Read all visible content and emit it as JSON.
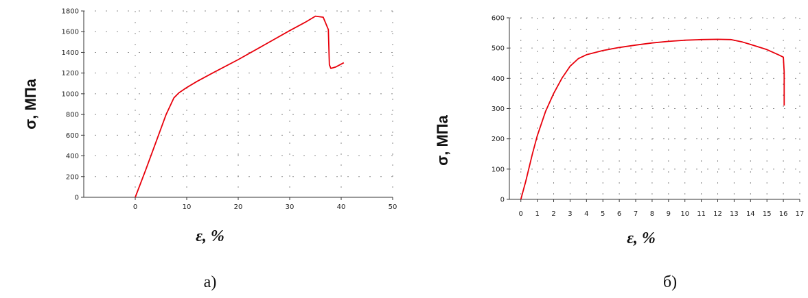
{
  "chart_data": [
    {
      "type": "line",
      "ylabel": "σ, МПа",
      "xlabel": "ε, %",
      "caption": "а)",
      "xlim": [
        -10,
        50
      ],
      "ylim": [
        0,
        1800
      ],
      "xticks": [
        0,
        10,
        20,
        30,
        40,
        50
      ],
      "yticks": [
        0,
        200,
        400,
        600,
        800,
        1000,
        1200,
        1400,
        1600,
        1800
      ],
      "grid": "dashed",
      "color": "#e8000b",
      "series": [
        {
          "x": [
            0,
            2,
            4,
            6,
            7.5,
            8.5,
            10,
            12,
            15,
            20,
            25,
            30,
            33,
            35,
            36.5,
            37.5,
            37.7,
            38,
            39,
            40.5
          ],
          "y": [
            0,
            260,
            530,
            800,
            960,
            1010,
            1060,
            1120,
            1200,
            1330,
            1470,
            1610,
            1690,
            1750,
            1740,
            1620,
            1280,
            1245,
            1260,
            1300
          ]
        }
      ]
    },
    {
      "type": "line",
      "ylabel": "σ, МПа",
      "xlabel": "ε, %",
      "caption": "б)",
      "xlim": [
        -0.7,
        17
      ],
      "ylim": [
        0,
        600
      ],
      "xticks": [
        0,
        1,
        2,
        3,
        4,
        5,
        6,
        7,
        8,
        9,
        10,
        11,
        12,
        13,
        14,
        15,
        16,
        17
      ],
      "yticks": [
        0,
        100,
        200,
        300,
        400,
        500,
        600
      ],
      "grid": "dashed",
      "color": "#e8000b",
      "series": [
        {
          "x": [
            0,
            0.3,
            0.7,
            1,
            1.5,
            2,
            2.5,
            3,
            3.5,
            4,
            5,
            6,
            7,
            8,
            9,
            10,
            11,
            12,
            12.8,
            13.5,
            14,
            15,
            15.7,
            16,
            16.05,
            16.05
          ],
          "y": [
            0,
            60,
            150,
            210,
            290,
            350,
            400,
            440,
            465,
            478,
            492,
            502,
            510,
            517,
            522,
            526,
            528,
            529,
            528,
            520,
            512,
            495,
            478,
            470,
            420,
            310
          ]
        }
      ]
    }
  ]
}
